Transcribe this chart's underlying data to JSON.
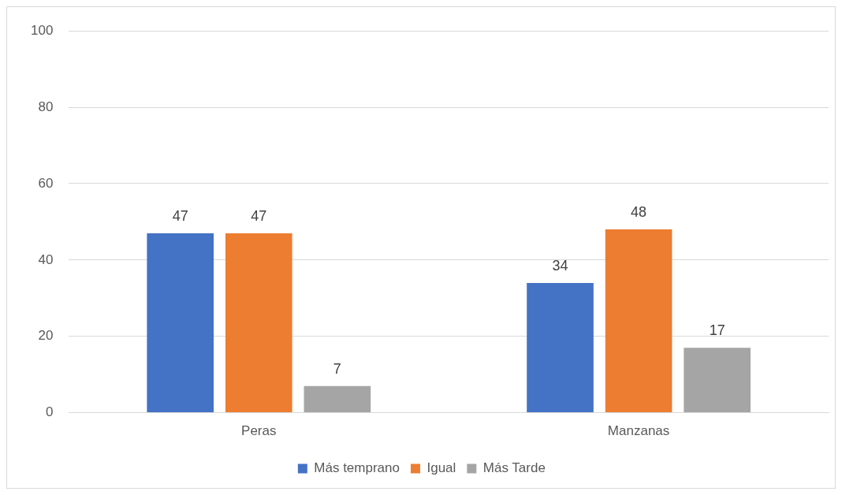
{
  "chart_data": {
    "type": "bar",
    "categories": [
      "Peras",
      "Manzanas"
    ],
    "series": [
      {
        "name": "Más temprano",
        "color": "#4472c4",
        "values": [
          47,
          34
        ]
      },
      {
        "name": "Igual",
        "color": "#ed7d31",
        "values": [
          47,
          48
        ]
      },
      {
        "name": "Más Tarde",
        "color": "#a5a5a5",
        "values": [
          7,
          17
        ]
      }
    ],
    "ylim": [
      0,
      100
    ],
    "yticks": [
      0,
      20,
      40,
      60,
      80,
      100
    ],
    "grid": "y",
    "legend": "bottom",
    "data_labels": true
  }
}
